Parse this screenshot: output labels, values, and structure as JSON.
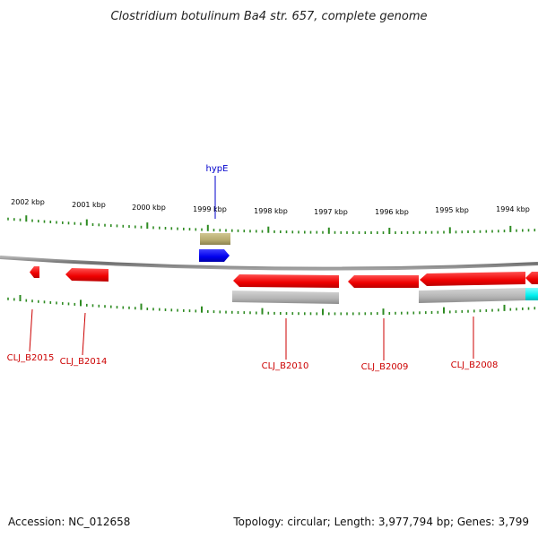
{
  "title": "Clostridium botulinum Ba4 str. 657, complete genome",
  "footer": {
    "accession": "Accession: NC_012658",
    "summary": "Topology: circular; Length: 3,977,794 bp; Genes: 3,799"
  },
  "colors": {
    "forward_gene": "#0000ff",
    "reverse_gene": "#ff0000",
    "tick": "#2e8b22",
    "label_forward": "#0000cc",
    "label_reverse": "#cc0000",
    "backbone": "#888888",
    "tan_feature": "#b5aa6e",
    "gray_feature": "#b0b0b0",
    "cyan_feature": "#00ffff"
  },
  "scale_labels": [
    "2002 kbp",
    "2001 kbp",
    "2000 kbp",
    "1999 kbp",
    "1998 kbp",
    "1997 kbp",
    "1996 kbp",
    "1995 kbp",
    "1994 kbp"
  ],
  "genes": [
    {
      "name": "hypE",
      "strand": "+"
    },
    {
      "name": "CLJ_B2015",
      "strand": "-"
    },
    {
      "name": "CLJ_B2014",
      "strand": "-"
    },
    {
      "name": "CLJ_B2010",
      "strand": "-"
    },
    {
      "name": "CLJ_B2009",
      "strand": "-"
    },
    {
      "name": "CLJ_B2008",
      "strand": "-"
    }
  ]
}
